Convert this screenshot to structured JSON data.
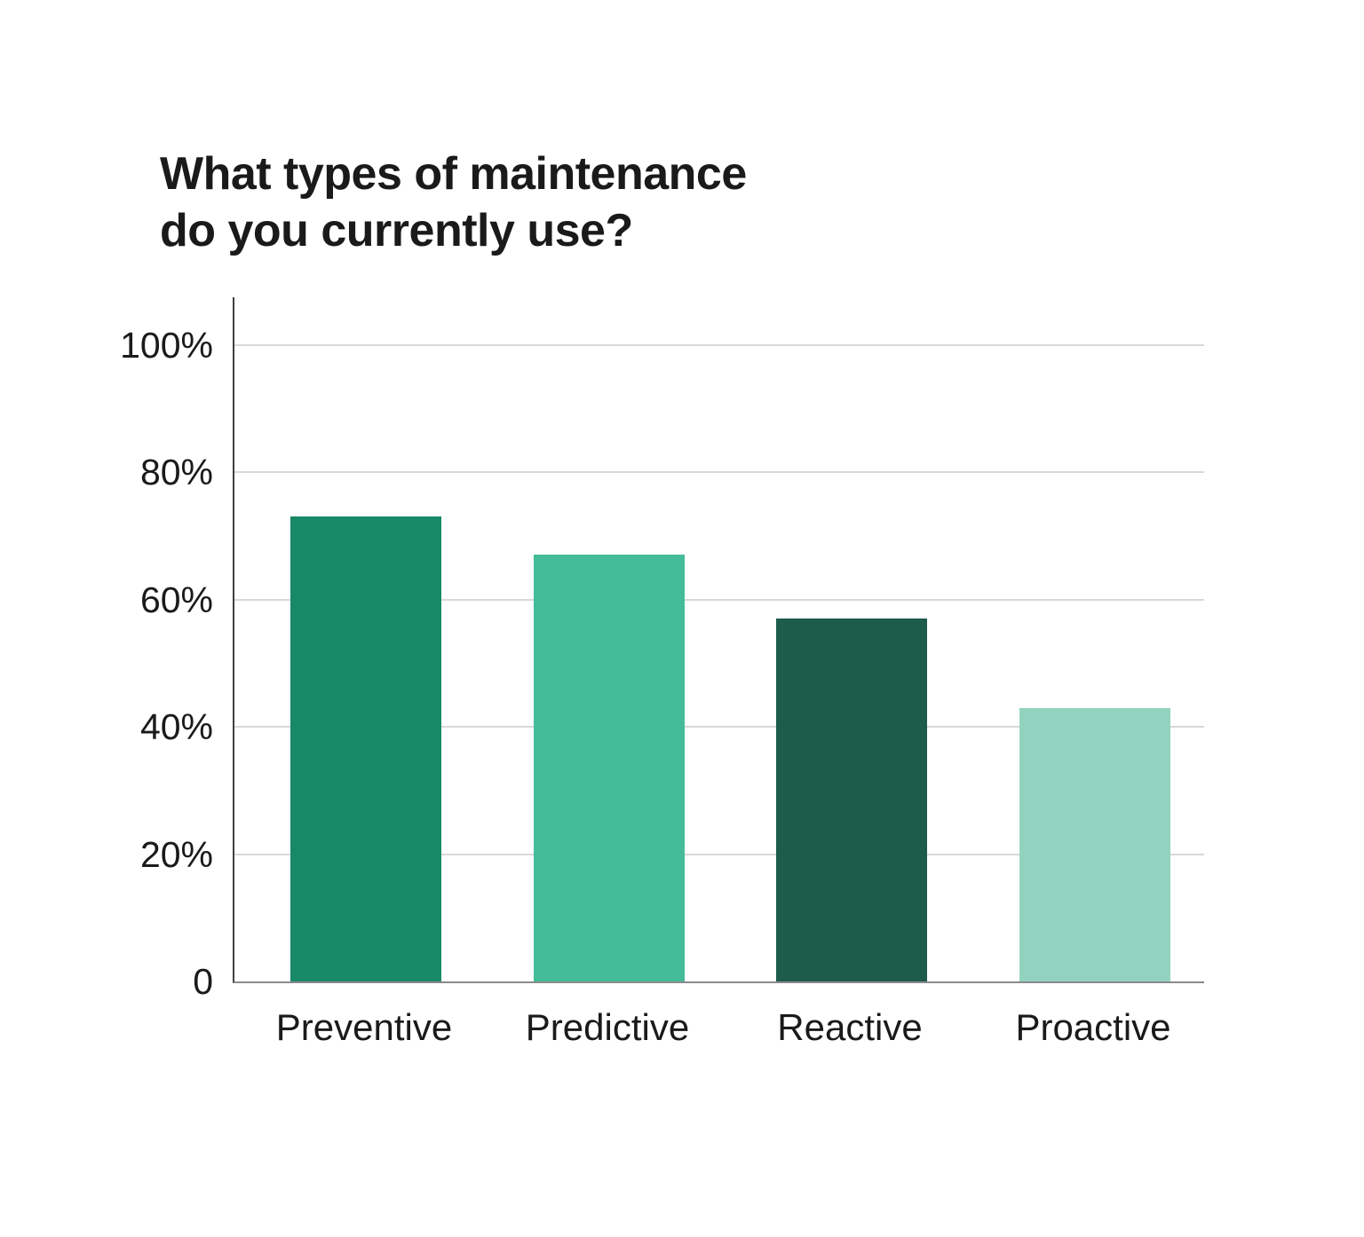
{
  "chart_data": {
    "type": "bar",
    "title": "What types of maintenance do you currently use?",
    "title_lines": [
      "What types of maintenance",
      "do you currently use?"
    ],
    "categories": [
      "Preventive",
      "Predictive",
      "Reactive",
      "Proactive"
    ],
    "values": [
      73,
      67,
      57,
      43
    ],
    "unit": "%",
    "bar_colors": [
      "#188966",
      "#44bc99",
      "#1e5c4a",
      "#92d3bf"
    ],
    "yticks": [
      {
        "label": "100%",
        "value": 100
      },
      {
        "label": "80%",
        "value": 80
      },
      {
        "label": "60%",
        "value": 60
      },
      {
        "label": "40%",
        "value": 40
      },
      {
        "label": "20%",
        "value": 20
      },
      {
        "label": "0",
        "value": 0
      }
    ],
    "ylim": [
      0,
      100
    ],
    "xlabel": "",
    "ylabel": "",
    "grid": true,
    "legend": "none",
    "colors": {
      "background": "#ffffff",
      "title_text": "#1a1a1a",
      "axis_text": "#1a1a1a",
      "gridline": "#d8d8d8",
      "y_axis_line": "#3f3f3f",
      "x_axis_line": "#8a8a8a"
    }
  }
}
